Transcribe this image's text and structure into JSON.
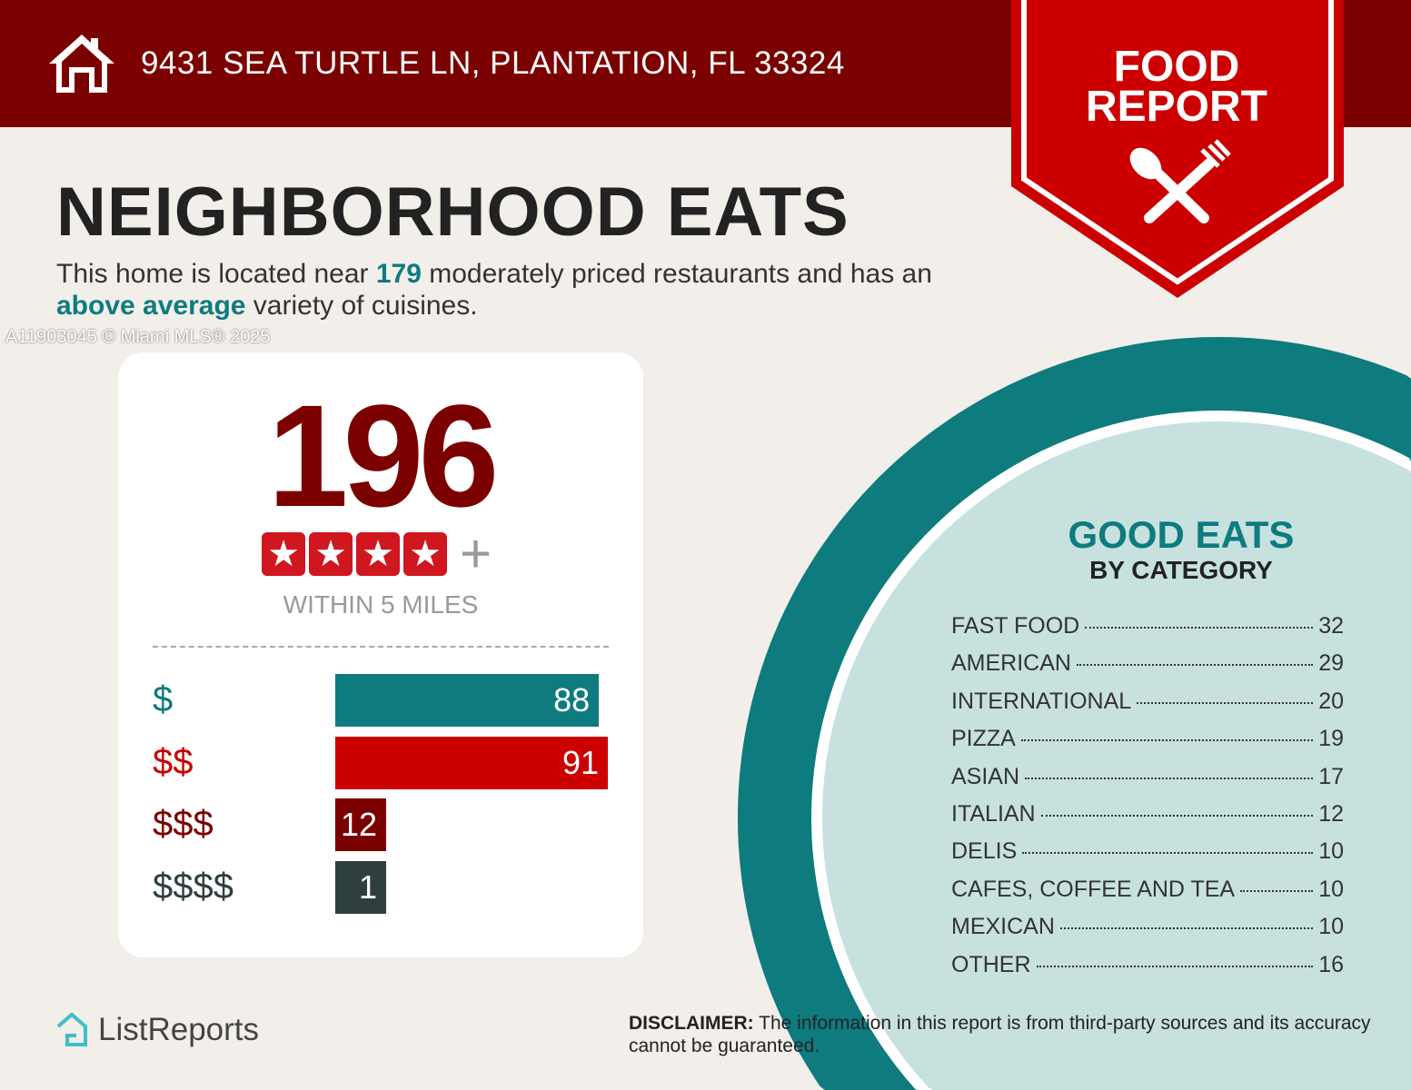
{
  "header": {
    "address": "9431 SEA TURTLE LN, PLANTATION, FL 33324",
    "badge_line1": "FOOD",
    "badge_line2": "REPORT"
  },
  "title": "NEIGHBORHOOD EATS",
  "subtitle": {
    "p1": "This home is located near ",
    "count": "179",
    "p2": " moderately priced restaurants and has an ",
    "variety": "above average",
    "p3": " variety of cuisines."
  },
  "summary": {
    "total": "196",
    "stars": 4,
    "plus": "+",
    "within": "WITHIN 5 MILES"
  },
  "watermark": "A11903045 © Miami MLS® 2025",
  "chart_data": {
    "type": "bar",
    "categories": [
      "$",
      "$$",
      "$$$",
      "$$$$"
    ],
    "values": [
      88,
      91,
      12,
      1
    ],
    "colors": [
      "#0e7b7e",
      "#cc0000",
      "#7b0000",
      "#2f3f3f"
    ]
  },
  "price_rows": [
    {
      "label": "$",
      "value": "88"
    },
    {
      "label": "$$",
      "value": "91"
    },
    {
      "label": "$$$",
      "value": "12"
    },
    {
      "label": "$$$$",
      "value": "1"
    }
  ],
  "good_eats": {
    "title": "GOOD EATS",
    "subtitle": "BY CATEGORY",
    "items": [
      {
        "name": "FAST FOOD",
        "count": "32"
      },
      {
        "name": "AMERICAN",
        "count": "29"
      },
      {
        "name": "INTERNATIONAL",
        "count": "20"
      },
      {
        "name": "PIZZA",
        "count": "19"
      },
      {
        "name": "ASIAN",
        "count": "17"
      },
      {
        "name": "ITALIAN",
        "count": "12"
      },
      {
        "name": "DELIS",
        "count": "10"
      },
      {
        "name": "CAFES, COFFEE AND TEA",
        "count": "10"
      },
      {
        "name": "MEXICAN",
        "count": "10"
      },
      {
        "name": "OTHER",
        "count": "16"
      }
    ]
  },
  "footer": {
    "logo": "ListReports",
    "disclaimer_label": "DISCLAIMER:",
    "disclaimer": " The information in this report is from third-party sources and its accuracy cannot be guaranteed."
  },
  "colors": {
    "maroon": "#7b0000",
    "red": "#cc0000",
    "teal": "#0e7b7e",
    "light_teal": "#c7e1df"
  }
}
